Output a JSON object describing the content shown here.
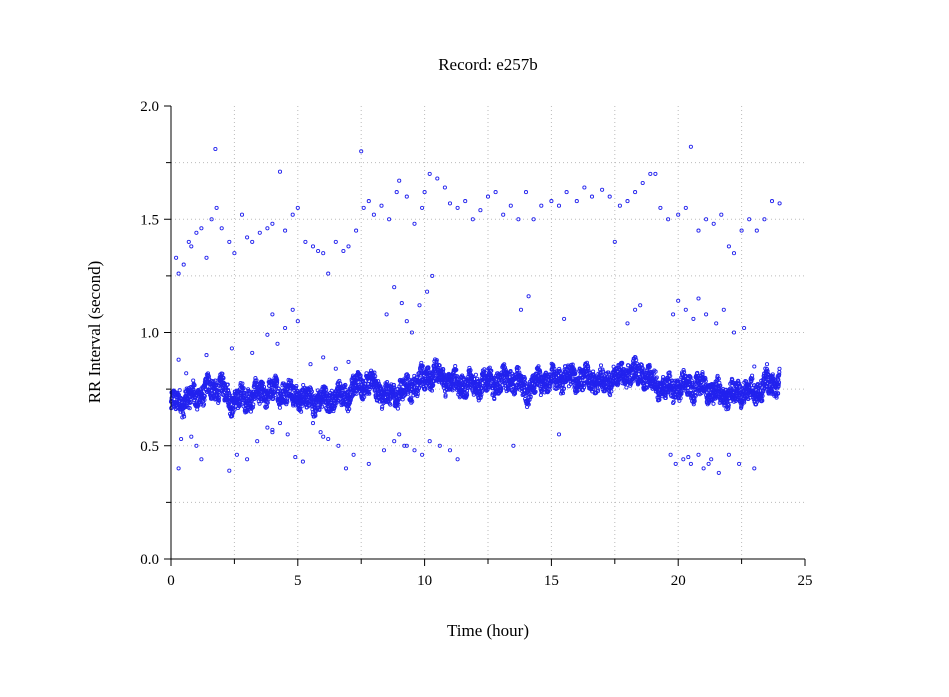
{
  "chart_data": {
    "type": "scatter",
    "title": "Record:  e257b",
    "xlabel": "Time (hour)",
    "ylabel": "RR Interval (second)",
    "xlim": [
      0,
      25
    ],
    "ylim": [
      0.0,
      2.0
    ],
    "x_ticks": [
      "0",
      "5",
      "10",
      "15",
      "20",
      "25"
    ],
    "y_ticks": [
      "0.0",
      "0.5",
      "1.0",
      "1.5",
      "2.0"
    ],
    "grid": true,
    "marker": "open circle",
    "colors": {
      "points": "#2222ee",
      "axis": "#000000",
      "grid": "#bbbbbb"
    },
    "trend": [
      [
        0.0,
        0.68
      ],
      [
        0.5,
        0.7
      ],
      [
        1.0,
        0.72
      ],
      [
        1.5,
        0.75
      ],
      [
        2.0,
        0.76
      ],
      [
        2.3,
        0.7
      ],
      [
        3.0,
        0.71
      ],
      [
        3.5,
        0.73
      ],
      [
        4.0,
        0.74
      ],
      [
        4.5,
        0.74
      ],
      [
        5.0,
        0.72
      ],
      [
        5.5,
        0.7
      ],
      [
        6.0,
        0.7
      ],
      [
        6.5,
        0.71
      ],
      [
        7.0,
        0.73
      ],
      [
        7.5,
        0.78
      ],
      [
        8.0,
        0.77
      ],
      [
        8.5,
        0.71
      ],
      [
        9.0,
        0.74
      ],
      [
        9.5,
        0.76
      ],
      [
        10.0,
        0.8
      ],
      [
        10.5,
        0.82
      ],
      [
        11.0,
        0.78
      ],
      [
        11.5,
        0.77
      ],
      [
        12.0,
        0.77
      ],
      [
        12.5,
        0.78
      ],
      [
        13.0,
        0.78
      ],
      [
        13.5,
        0.8
      ],
      [
        14.0,
        0.74
      ],
      [
        14.5,
        0.78
      ],
      [
        15.0,
        0.79
      ],
      [
        15.5,
        0.8
      ],
      [
        16.0,
        0.8
      ],
      [
        16.5,
        0.79
      ],
      [
        17.0,
        0.78
      ],
      [
        17.5,
        0.8
      ],
      [
        18.0,
        0.82
      ],
      [
        18.5,
        0.82
      ],
      [
        19.0,
        0.78
      ],
      [
        19.5,
        0.75
      ],
      [
        20.0,
        0.76
      ],
      [
        20.5,
        0.76
      ],
      [
        21.0,
        0.76
      ],
      [
        21.5,
        0.73
      ],
      [
        22.0,
        0.72
      ],
      [
        22.5,
        0.74
      ],
      [
        23.0,
        0.74
      ],
      [
        23.5,
        0.77
      ],
      [
        24.0,
        0.78
      ]
    ],
    "outliers_high": [
      [
        0.2,
        1.33
      ],
      [
        0.3,
        1.26
      ],
      [
        0.5,
        1.3
      ],
      [
        0.7,
        1.4
      ],
      [
        0.8,
        1.38
      ],
      [
        1.0,
        1.44
      ],
      [
        1.2,
        1.46
      ],
      [
        1.4,
        1.33
      ],
      [
        1.6,
        1.5
      ],
      [
        1.8,
        1.55
      ],
      [
        1.75,
        1.81
      ],
      [
        2.0,
        1.46
      ],
      [
        2.3,
        1.4
      ],
      [
        2.5,
        1.35
      ],
      [
        2.8,
        1.52
      ],
      [
        3.0,
        1.42
      ],
      [
        3.2,
        1.4
      ],
      [
        3.5,
        1.44
      ],
      [
        3.8,
        1.46
      ],
      [
        4.0,
        1.48
      ],
      [
        4.3,
        1.71
      ],
      [
        4.5,
        1.45
      ],
      [
        4.8,
        1.52
      ],
      [
        5.0,
        1.55
      ],
      [
        5.3,
        1.4
      ],
      [
        5.6,
        1.38
      ],
      [
        5.8,
        1.36
      ],
      [
        6.0,
        1.35
      ],
      [
        6.2,
        1.26
      ],
      [
        6.5,
        1.4
      ],
      [
        6.8,
        1.36
      ],
      [
        7.0,
        1.38
      ],
      [
        7.3,
        1.45
      ],
      [
        7.5,
        1.8
      ],
      [
        7.6,
        1.55
      ],
      [
        7.8,
        1.58
      ],
      [
        8.0,
        1.52
      ],
      [
        8.3,
        1.56
      ],
      [
        8.6,
        1.5
      ],
      [
        8.9,
        1.62
      ],
      [
        9.0,
        1.67
      ],
      [
        9.3,
        1.6
      ],
      [
        9.6,
        1.48
      ],
      [
        9.9,
        1.55
      ],
      [
        10.0,
        1.62
      ],
      [
        10.2,
        1.7
      ],
      [
        10.5,
        1.68
      ],
      [
        10.8,
        1.64
      ],
      [
        11.0,
        1.57
      ],
      [
        11.3,
        1.55
      ],
      [
        11.6,
        1.58
      ],
      [
        11.9,
        1.5
      ],
      [
        12.2,
        1.54
      ],
      [
        12.5,
        1.6
      ],
      [
        12.8,
        1.62
      ],
      [
        13.1,
        1.52
      ],
      [
        13.4,
        1.56
      ],
      [
        13.7,
        1.5
      ],
      [
        14.0,
        1.62
      ],
      [
        14.3,
        1.5
      ],
      [
        14.6,
        1.56
      ],
      [
        15.0,
        1.58
      ],
      [
        15.3,
        1.56
      ],
      [
        15.6,
        1.62
      ],
      [
        16.0,
        1.58
      ],
      [
        16.3,
        1.64
      ],
      [
        16.6,
        1.6
      ],
      [
        17.0,
        1.63
      ],
      [
        17.3,
        1.6
      ],
      [
        17.5,
        1.4
      ],
      [
        17.7,
        1.56
      ],
      [
        18.0,
        1.58
      ],
      [
        18.3,
        1.62
      ],
      [
        18.6,
        1.66
      ],
      [
        18.9,
        1.7
      ],
      [
        19.1,
        1.7
      ],
      [
        19.3,
        1.55
      ],
      [
        19.6,
        1.5
      ],
      [
        20.0,
        1.52
      ],
      [
        20.3,
        1.55
      ],
      [
        20.5,
        1.82
      ],
      [
        20.8,
        1.45
      ],
      [
        21.1,
        1.5
      ],
      [
        21.4,
        1.48
      ],
      [
        21.7,
        1.52
      ],
      [
        22.0,
        1.38
      ],
      [
        22.2,
        1.35
      ],
      [
        22.5,
        1.45
      ],
      [
        22.8,
        1.5
      ],
      [
        23.1,
        1.45
      ],
      [
        23.4,
        1.5
      ],
      [
        23.7,
        1.58
      ],
      [
        24.0,
        1.57
      ]
    ],
    "outliers_mid": [
      [
        0.3,
        0.88
      ],
      [
        0.6,
        0.82
      ],
      [
        1.4,
        0.9
      ],
      [
        2.4,
        0.93
      ],
      [
        3.2,
        0.91
      ],
      [
        3.8,
        0.99
      ],
      [
        4.0,
        1.08
      ],
      [
        4.2,
        0.95
      ],
      [
        4.5,
        1.02
      ],
      [
        4.8,
        1.1
      ],
      [
        5.0,
        1.05
      ],
      [
        5.5,
        0.86
      ],
      [
        6.0,
        0.89
      ],
      [
        6.5,
        0.84
      ],
      [
        7.0,
        0.87
      ],
      [
        8.5,
        1.08
      ],
      [
        8.8,
        1.2
      ],
      [
        9.1,
        1.13
      ],
      [
        9.3,
        1.05
      ],
      [
        9.5,
        1.0
      ],
      [
        9.8,
        1.12
      ],
      [
        10.1,
        1.18
      ],
      [
        10.3,
        1.25
      ],
      [
        13.8,
        1.1
      ],
      [
        14.1,
        1.16
      ],
      [
        15.5,
        1.06
      ],
      [
        18.0,
        1.04
      ],
      [
        18.3,
        1.1
      ],
      [
        18.5,
        1.12
      ],
      [
        19.8,
        1.08
      ],
      [
        20.0,
        1.14
      ],
      [
        20.3,
        1.1
      ],
      [
        20.6,
        1.06
      ],
      [
        20.8,
        1.15
      ],
      [
        21.1,
        1.08
      ],
      [
        21.5,
        1.04
      ],
      [
        21.8,
        1.1
      ],
      [
        22.2,
        1.0
      ],
      [
        22.6,
        1.02
      ],
      [
        23.0,
        0.85
      ],
      [
        23.5,
        0.86
      ]
    ],
    "outliers_low": [
      [
        0.3,
        0.4
      ],
      [
        0.4,
        0.53
      ],
      [
        0.8,
        0.54
      ],
      [
        1.0,
        0.5
      ],
      [
        1.2,
        0.44
      ],
      [
        2.3,
        0.39
      ],
      [
        2.6,
        0.46
      ],
      [
        3.0,
        0.44
      ],
      [
        3.4,
        0.52
      ],
      [
        3.8,
        0.58
      ],
      [
        4.0,
        0.57
      ],
      [
        4.3,
        0.6
      ],
      [
        4.6,
        0.55
      ],
      [
        4.9,
        0.45
      ],
      [
        5.2,
        0.43
      ],
      [
        5.6,
        0.6
      ],
      [
        5.9,
        0.56
      ],
      [
        6.2,
        0.53
      ],
      [
        6.6,
        0.5
      ],
      [
        6.9,
        0.4
      ],
      [
        7.2,
        0.46
      ],
      [
        7.8,
        0.42
      ],
      [
        8.4,
        0.48
      ],
      [
        8.8,
        0.52
      ],
      [
        9.0,
        0.55
      ],
      [
        9.3,
        0.5
      ],
      [
        9.6,
        0.48
      ],
      [
        9.9,
        0.46
      ],
      [
        10.2,
        0.52
      ],
      [
        10.6,
        0.5
      ],
      [
        11.0,
        0.48
      ],
      [
        11.3,
        0.44
      ],
      [
        13.5,
        0.5
      ],
      [
        15.3,
        0.55
      ],
      [
        19.7,
        0.46
      ],
      [
        19.9,
        0.42
      ],
      [
        20.2,
        0.44
      ],
      [
        20.5,
        0.42
      ],
      [
        20.8,
        0.46
      ],
      [
        21.0,
        0.4
      ],
      [
        21.3,
        0.44
      ],
      [
        21.6,
        0.38
      ],
      [
        22.0,
        0.46
      ],
      [
        22.4,
        0.42
      ],
      [
        23.0,
        0.4
      ]
    ],
    "outliers_cluster_low": [
      [
        4.0,
        0.56
      ],
      [
        9.2,
        0.5
      ],
      [
        20.4,
        0.45
      ],
      [
        6.0,
        0.54
      ],
      [
        21.2,
        0.42
      ]
    ]
  }
}
